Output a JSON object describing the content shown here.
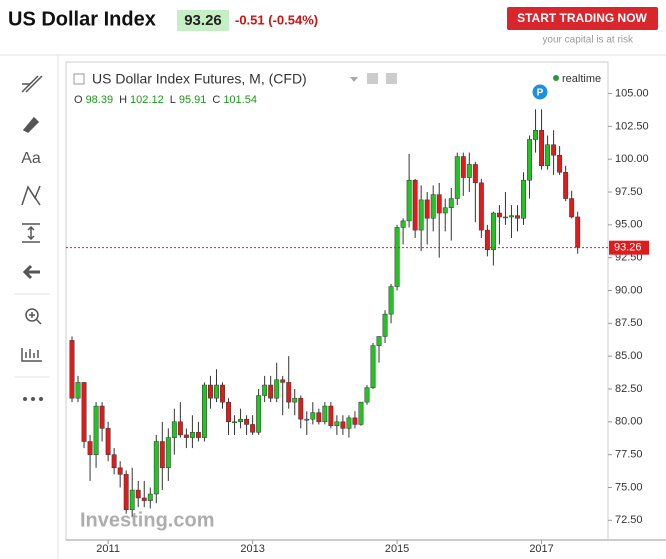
{
  "header": {
    "title": "US Dollar Index",
    "price": "93.26",
    "change": "-0.51 (-0.54%)",
    "button": "START TRADING NOW",
    "disclaimer": "your capital is at risk"
  },
  "toolbar": {
    "text_tool": "Aa"
  },
  "chart_data": {
    "type": "candlestick",
    "title": "US Dollar Index Futures, M, (CFD)",
    "status": "realtime",
    "marker": "P",
    "watermark": "Investing.com",
    "ohlc_legend": [
      {
        "label": "O",
        "value": "98.39"
      },
      {
        "label": "H",
        "value": "102.12"
      },
      {
        "label": "L",
        "value": "95.91"
      },
      {
        "label": "C",
        "value": "101.54"
      }
    ],
    "last_price": 93.26,
    "up_color": "#22c322",
    "down_color": "#e01b1b",
    "categories": [
      null,
      null,
      null,
      null,
      null,
      null,
      "2011",
      null,
      null,
      null,
      null,
      null,
      null,
      null,
      null,
      null,
      null,
      null,
      null,
      null,
      null,
      null,
      null,
      null,
      null,
      null,
      null,
      null,
      null,
      null,
      "2013",
      null,
      null,
      null,
      null,
      null,
      null,
      null,
      null,
      null,
      null,
      null,
      null,
      null,
      null,
      null,
      null,
      null,
      null,
      null,
      null,
      null,
      null,
      null,
      "2015",
      null,
      null,
      null,
      null,
      null,
      null,
      null,
      null,
      null,
      null,
      null,
      null,
      null,
      null,
      null,
      null,
      null,
      null,
      null,
      null,
      null,
      null,
      null,
      "2017",
      null,
      null,
      null,
      null,
      null,
      null
    ],
    "open": [
      86.2,
      81.8,
      83.0,
      78.5,
      77.5,
      81.2,
      79.5,
      77.5,
      76.5,
      76.0,
      73.3,
      74.8,
      74.2,
      74.0,
      74.5,
      78.5,
      76.5,
      78.8,
      80.0,
      79.0,
      78.8,
      79.2,
      78.8,
      82.8,
      81.8,
      82.8,
      81.5,
      80.0,
      80.0,
      80.2,
      79.8,
      79.2,
      82.0,
      82.8,
      81.8,
      83.2,
      83.0,
      81.5,
      81.8,
      80.2,
      80.2,
      80.7,
      80.0,
      81.2,
      79.7,
      80.0,
      79.5,
      80.3,
      79.8,
      81.5,
      82.6,
      85.8,
      86.5,
      88.2,
      90.3,
      94.8,
      95.3,
      98.4,
      94.6,
      96.9,
      95.5,
      97.3,
      95.9,
      96.3,
      97.0,
      100.2,
      98.6,
      99.6,
      98.2,
      94.6,
      93.1,
      95.9,
      95.6,
      95.6,
      95.7,
      95.5,
      98.4,
      101.5,
      102.2,
      99.5,
      101.1,
      100.3,
      99.0,
      97.0,
      95.6
    ],
    "high": [
      86.5,
      83.5,
      83.0,
      79.0,
      81.5,
      81.5,
      80.0,
      78.0,
      77.0,
      76.3,
      76.5,
      75.5,
      75.5,
      75.0,
      79.0,
      80.0,
      79.5,
      81.0,
      81.5,
      79.5,
      80.5,
      80.0,
      83.0,
      83.5,
      84.0,
      83.0,
      81.8,
      80.5,
      81.0,
      80.5,
      80.5,
      82.5,
      83.5,
      83.5,
      84.5,
      83.5,
      85.0,
      82.5,
      82.0,
      80.8,
      81.5,
      81.0,
      81.5,
      81.5,
      80.5,
      80.5,
      80.5,
      80.8,
      81.5,
      82.8,
      86.0,
      86.5,
      88.5,
      90.5,
      95.0,
      95.5,
      100.4,
      98.5,
      98.0,
      97.5,
      98.0,
      98.2,
      97.0,
      97.8,
      100.5,
      100.5,
      100.5,
      99.8,
      98.5,
      95.0,
      96.0,
      96.5,
      97.5,
      96.5,
      96.5,
      99.0,
      101.8,
      103.8,
      103.8,
      101.8,
      102.2,
      101.0,
      99.5,
      97.6,
      96.0
    ],
    "low": [
      81.5,
      81.5,
      78.0,
      75.5,
      76.5,
      78.5,
      77.0,
      76.0,
      75.0,
      73.0,
      72.8,
      73.5,
      73.5,
      73.4,
      73.8,
      74.8,
      75.5,
      77.5,
      78.8,
      78.0,
      78.0,
      78.5,
      78.5,
      81.0,
      81.5,
      81.0,
      79.0,
      79.0,
      79.5,
      79.0,
      79.0,
      79.0,
      81.5,
      81.5,
      81.5,
      80.5,
      81.0,
      80.5,
      79.5,
      79.0,
      79.8,
      79.8,
      79.8,
      79.5,
      79.0,
      79.0,
      78.8,
      79.5,
      79.7,
      81.3,
      82.5,
      84.5,
      86.0,
      87.5,
      90.0,
      93.5,
      94.8,
      94.0,
      93.0,
      93.5,
      94.5,
      92.5,
      94.5,
      93.8,
      96.5,
      97.2,
      97.5,
      95.2,
      94.0,
      92.6,
      91.9,
      93.5,
      95.0,
      94.0,
      94.5,
      95.0,
      97.0,
      100.5,
      99.2,
      99.2,
      98.8,
      98.8,
      96.8,
      95.5,
      92.8
    ],
    "close": [
      81.8,
      83.0,
      78.5,
      77.5,
      81.2,
      79.5,
      77.5,
      76.5,
      76.0,
      73.3,
      74.8,
      74.2,
      74.0,
      74.5,
      78.5,
      76.5,
      78.8,
      80.0,
      79.0,
      78.8,
      79.2,
      78.8,
      82.8,
      81.8,
      82.8,
      81.5,
      80.0,
      80.0,
      80.2,
      79.8,
      79.2,
      82.0,
      82.8,
      81.8,
      83.2,
      83.0,
      81.5,
      81.8,
      80.2,
      80.2,
      80.7,
      80.0,
      81.2,
      79.7,
      80.0,
      79.5,
      80.3,
      79.8,
      81.5,
      82.6,
      85.8,
      86.5,
      88.2,
      90.3,
      94.8,
      95.3,
      98.4,
      94.6,
      96.9,
      95.5,
      97.3,
      95.9,
      96.3,
      97.0,
      100.2,
      98.6,
      99.6,
      98.2,
      94.6,
      93.1,
      95.9,
      95.6,
      95.6,
      95.7,
      95.5,
      98.4,
      101.5,
      102.2,
      99.5,
      101.1,
      100.3,
      99.0,
      97.0,
      95.6,
      93.3
    ],
    "ylim": [
      71,
      107.4
    ],
    "yticks": [
      {
        "value": 72.5,
        "label": "72.50"
      },
      {
        "value": 75,
        "label": "75.00"
      },
      {
        "value": 77.5,
        "label": "77.50"
      },
      {
        "value": 80,
        "label": "80.00"
      },
      {
        "value": 82.5,
        "label": "82.50"
      },
      {
        "value": 85,
        "label": "85.00"
      },
      {
        "value": 87.5,
        "label": "87.50"
      },
      {
        "value": 90,
        "label": "90.00"
      },
      {
        "value": 92.5,
        "label": "92.50"
      },
      {
        "value": 95,
        "label": "95.00"
      },
      {
        "value": 97.5,
        "label": "97.50"
      },
      {
        "value": 100,
        "label": "100.00"
      },
      {
        "value": 102.5,
        "label": "102.50"
      },
      {
        "value": 105,
        "label": "105.00"
      }
    ]
  }
}
